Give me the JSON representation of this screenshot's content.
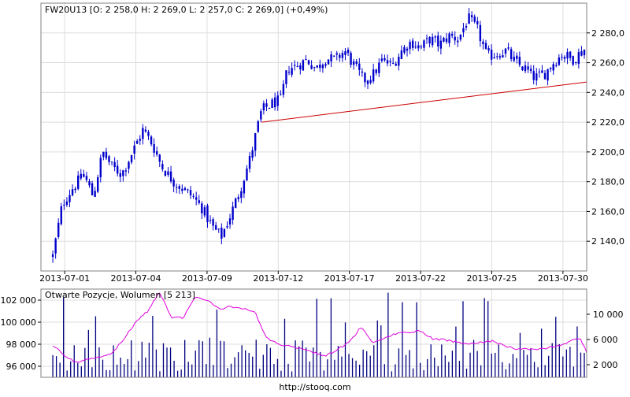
{
  "source_label": "http://stooq.com",
  "colors": {
    "candles": "#0000cc",
    "trendline": "#cc0000",
    "open_interest": "#e000e0",
    "volume": "#000080",
    "grid": "#dddddd",
    "frame": "#808080"
  },
  "chart_data": [
    {
      "type": "candlestick",
      "title": "FW20U13 [O: 2 258,0  H: 2 269,0  L: 2 257,0  C: 2 269,0] (+0,49%)",
      "y_axis_side": "right",
      "ylim": [
        2120,
        2300
      ],
      "yticks": [
        2140,
        2160,
        2180,
        2200,
        2220,
        2240,
        2260,
        2280
      ],
      "ytick_labels": [
        "2 140,0",
        "2 160,0",
        "2 180,0",
        "2 200,0",
        "2 220,0",
        "2 240,0",
        "2 260,0",
        "2 280,0"
      ],
      "xlim": [
        0,
        23
      ],
      "x_tick_labels": [
        {
          "pos": 1,
          "label": "2013-07-01"
        },
        {
          "pos": 4,
          "label": "2013-07-04"
        },
        {
          "pos": 7,
          "label": "2013-07-09"
        },
        {
          "pos": 10,
          "label": "2013-07-12"
        },
        {
          "pos": 13,
          "label": "2013-07-17"
        },
        {
          "pos": 16,
          "label": "2013-07-22"
        },
        {
          "pos": 19,
          "label": "2013-07-25"
        },
        {
          "pos": 22,
          "label": "2013-07-30"
        }
      ],
      "close_anchors": [
        [
          0.5,
          2130
        ],
        [
          0.9,
          2165
        ],
        [
          1.3,
          2175
        ],
        [
          1.8,
          2185
        ],
        [
          2.2,
          2170
        ],
        [
          2.6,
          2200
        ],
        [
          3.0,
          2190
        ],
        [
          3.4,
          2185
        ],
        [
          3.8,
          2198
        ],
        [
          4.3,
          2215
        ],
        [
          4.7,
          2205
        ],
        [
          5.1,
          2190
        ],
        [
          5.6,
          2180
        ],
        [
          6.0,
          2175
        ],
        [
          6.4,
          2170
        ],
        [
          6.8,
          2162
        ],
        [
          7.2,
          2150
        ],
        [
          7.6,
          2143
        ],
        [
          8.0,
          2158
        ],
        [
          8.4,
          2175
        ],
        [
          8.8,
          2195
        ],
        [
          9.3,
          2228
        ],
        [
          9.7,
          2232
        ],
        [
          10.1,
          2235
        ],
        [
          10.4,
          2256
        ],
        [
          10.8,
          2258
        ],
        [
          11.2,
          2262
        ],
        [
          11.6,
          2256
        ],
        [
          12.0,
          2263
        ],
        [
          12.4,
          2262
        ],
        [
          12.8,
          2268
        ],
        [
          13.2,
          2258
        ],
        [
          13.6,
          2248
        ],
        [
          14.0,
          2252
        ],
        [
          14.4,
          2262
        ],
        [
          14.8,
          2258
        ],
        [
          15.2,
          2268
        ],
        [
          15.6,
          2274
        ],
        [
          16.0,
          2270
        ],
        [
          16.4,
          2276
        ],
        [
          16.8,
          2272
        ],
        [
          17.2,
          2278
        ],
        [
          17.6,
          2276
        ],
        [
          18.0,
          2290
        ],
        [
          18.4,
          2282
        ],
        [
          18.8,
          2264
        ],
        [
          19.2,
          2266
        ],
        [
          19.6,
          2268
        ],
        [
          20.0,
          2260
        ],
        [
          20.4,
          2256
        ],
        [
          20.8,
          2250
        ],
        [
          21.2,
          2252
        ],
        [
          21.6,
          2260
        ],
        [
          22.0,
          2266
        ],
        [
          22.4,
          2262
        ],
        [
          22.9,
          2269
        ]
      ],
      "trendline": {
        "from": [
          9.3,
          2220
        ],
        "to": [
          23,
          2247
        ]
      }
    },
    {
      "type": "line+bar",
      "title": "Otwarte Pozycje, Wolumen [5 213]",
      "left_axis": {
        "name": "Otwarte Pozycje",
        "ylim": [
          95000,
          103000
        ],
        "yticks": [
          96000,
          98000,
          100000,
          102000
        ],
        "ytick_labels": [
          "96 000",
          "98 000",
          "100 000",
          "102 000"
        ]
      },
      "right_axis": {
        "name": "Wolumen",
        "ylim": [
          0,
          14000
        ],
        "yticks": [
          2000,
          6000,
          10000
        ],
        "ytick_labels": [
          "2 000",
          "6 000",
          "10 000"
        ]
      },
      "open_interest_anchors": [
        [
          0.5,
          97900
        ],
        [
          1.0,
          97000
        ],
        [
          1.5,
          96300
        ],
        [
          2.0,
          96600
        ],
        [
          2.5,
          96900
        ],
        [
          3.0,
          97200
        ],
        [
          3.5,
          98500
        ],
        [
          4.0,
          100000
        ],
        [
          4.5,
          101000
        ],
        [
          5.0,
          102700
        ],
        [
          5.5,
          100400
        ],
        [
          6.0,
          100400
        ],
        [
          6.5,
          102300
        ],
        [
          7.0,
          102000
        ],
        [
          7.5,
          101200
        ],
        [
          8.0,
          101400
        ],
        [
          8.5,
          101200
        ],
        [
          9.0,
          101000
        ],
        [
          9.5,
          98600
        ],
        [
          10.0,
          98000
        ],
        [
          11.0,
          97600
        ],
        [
          12.0,
          96900
        ],
        [
          13.0,
          98200
        ],
        [
          13.5,
          99600
        ],
        [
          14.0,
          98100
        ],
        [
          15.0,
          99000
        ],
        [
          16.0,
          99200
        ],
        [
          16.5,
          98500
        ],
        [
          17.0,
          98400
        ],
        [
          18.0,
          98000
        ],
        [
          19.0,
          98300
        ],
        [
          19.5,
          97900
        ],
        [
          20.0,
          97600
        ],
        [
          21.0,
          97500
        ],
        [
          22.0,
          98000
        ],
        [
          22.7,
          98600
        ],
        [
          23.0,
          97300
        ]
      ],
      "volume_seed": 7
    }
  ]
}
